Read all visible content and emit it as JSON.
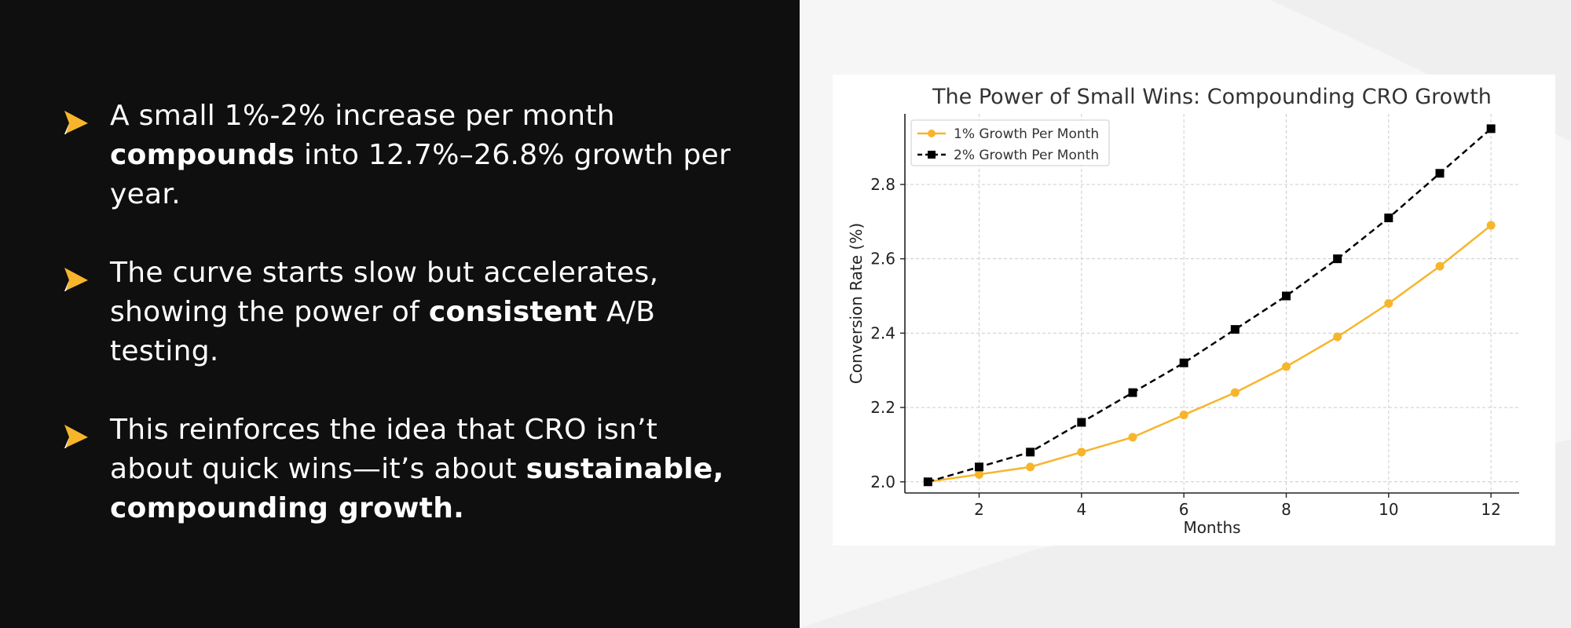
{
  "bullets": [
    {
      "lines": [
        [
          {
            "text": "A small 1%-2% increase per month",
            "bold": false
          }
        ],
        [
          {
            "text": "compounds",
            "bold": true
          },
          {
            "text": " into 12.7%–26.8% growth per",
            "bold": false
          }
        ],
        [
          {
            "text": "year.",
            "bold": false
          }
        ]
      ]
    },
    {
      "lines": [
        [
          {
            "text": "The curve starts slow but accelerates,",
            "bold": false
          }
        ],
        [
          {
            "text": "showing the power of ",
            "bold": false
          },
          {
            "text": "consistent",
            "bold": true
          },
          {
            "text": " A/B",
            "bold": false
          }
        ],
        [
          {
            "text": "testing.",
            "bold": false
          }
        ]
      ]
    },
    {
      "lines": [
        [
          {
            "text": "This reinforces the idea that CRO isn’t",
            "bold": false
          }
        ],
        [
          {
            "text": "about quick wins—it’s about ",
            "bold": false
          },
          {
            "text": "sustainable,",
            "bold": true
          }
        ],
        [
          {
            "text": "compounding growth.",
            "bold": true
          }
        ]
      ]
    }
  ],
  "colors": {
    "accent": "#f7b52c",
    "left_bg": "#0f0f0f",
    "series_1": "#f7b52c",
    "series_2": "#000000",
    "grid": "#cccccc"
  },
  "icons": {
    "bullet": "play-arrow-icon"
  },
  "chart_data": {
    "type": "line",
    "title": "The Power of Small Wins: Compounding CRO Growth",
    "xlabel": "Months",
    "ylabel": "Conversion Rate (%)",
    "x": [
      1,
      2,
      3,
      4,
      5,
      6,
      7,
      8,
      9,
      10,
      11,
      12
    ],
    "xlim": [
      0.55,
      12.55
    ],
    "ylim": [
      1.97,
      2.99
    ],
    "xticks": [
      2,
      4,
      6,
      8,
      10,
      12
    ],
    "yticks": [
      2.0,
      2.2,
      2.4,
      2.6,
      2.8
    ],
    "ytick_labels": [
      "2.0",
      "2.2",
      "2.4",
      "2.6",
      "2.8"
    ],
    "grid": true,
    "legend_position": "top-left",
    "series": [
      {
        "name": "1% Growth Per Month",
        "color": "#f7b52c",
        "marker": "circle",
        "linestyle": "solid",
        "values": [
          2.0,
          2.02,
          2.04,
          2.08,
          2.12,
          2.18,
          2.24,
          2.31,
          2.39,
          2.48,
          2.58,
          2.69
        ]
      },
      {
        "name": "2% Growth Per Month",
        "color": "#000000",
        "marker": "square",
        "linestyle": "dashed",
        "values": [
          2.0,
          2.04,
          2.08,
          2.16,
          2.24,
          2.32,
          2.41,
          2.5,
          2.6,
          2.71,
          2.83,
          2.95
        ]
      }
    ]
  }
}
